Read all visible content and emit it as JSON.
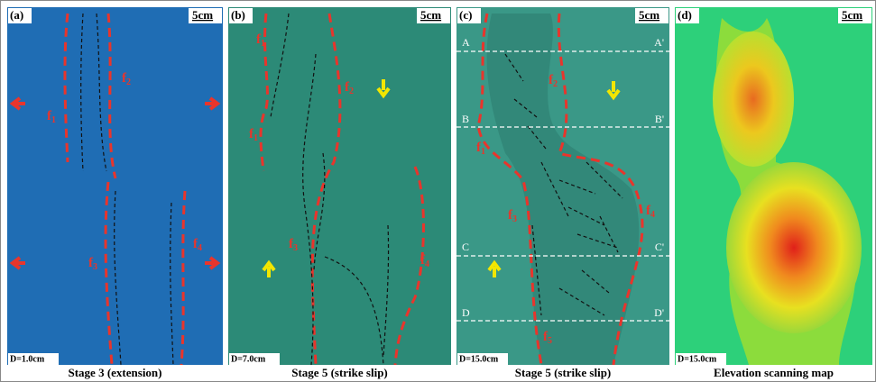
{
  "panels": [
    {
      "label": "(a)",
      "scale": "5cm",
      "depth": "D=1.0cm",
      "caption": "Stage 3 (extension)",
      "faults": [
        {
          "base": "f",
          "sub": "1"
        },
        {
          "base": "f",
          "sub": "2"
        },
        {
          "base": "f",
          "sub": "3"
        },
        {
          "base": "f",
          "sub": "4"
        }
      ]
    },
    {
      "label": "(b)",
      "scale": "5cm",
      "depth": "D=7.0cm",
      "caption": "Stage 5 (strike slip)",
      "faults": [
        {
          "base": "f",
          "sub": "1"
        },
        {
          "base": "f",
          "sub": "1"
        },
        {
          "base": "f",
          "sub": "2"
        },
        {
          "base": "f",
          "sub": "3"
        },
        {
          "base": "f",
          "sub": "4"
        }
      ]
    },
    {
      "label": "(c)",
      "scale": "5cm",
      "depth": "D=15.0cm",
      "caption": "Stage 5 (strike slip)",
      "faults": [
        {
          "base": "f",
          "sub": "1"
        },
        {
          "base": "f",
          "sub": "2"
        },
        {
          "base": "f",
          "sub": "3"
        },
        {
          "base": "f",
          "sub": "4"
        },
        {
          "base": "f",
          "sub": "5"
        }
      ]
    },
    {
      "label": "(d)",
      "scale": "5cm",
      "depth": "D=15.0cm",
      "caption": "Elevation scanning map",
      "faults": []
    }
  ],
  "sections": [
    "A",
    "A'",
    "B",
    "B'",
    "C",
    "C'",
    "D",
    "D'"
  ]
}
